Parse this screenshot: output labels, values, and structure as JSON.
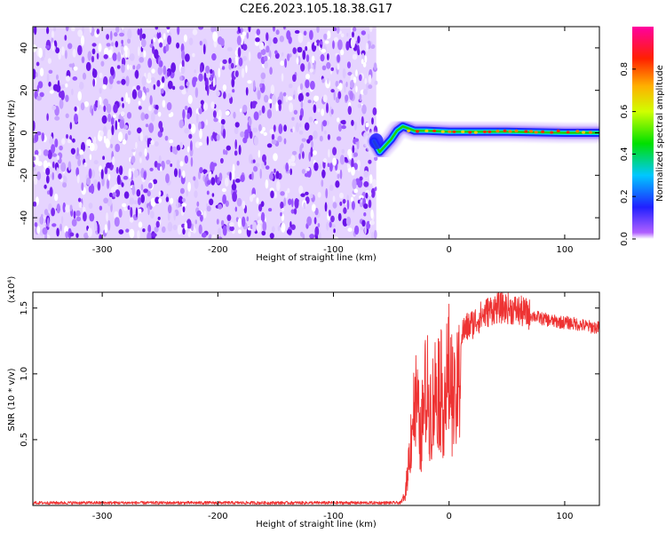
{
  "title": "C2E6.2023.105.18.38.G17",
  "chart_data": [
    {
      "type": "heatmap",
      "xlabel": "Height of straight line (km)",
      "ylabel": "Frequency (Hz)",
      "xlim": [
        -360,
        130
      ],
      "ylim": [
        -50,
        50
      ],
      "xticks": [
        -300,
        -200,
        -100,
        0,
        100
      ],
      "yticks": [
        -40,
        -20,
        0,
        20,
        40
      ],
      "noise_region": [
        -360,
        -63
      ],
      "signal_trace": [
        {
          "x": -65,
          "y": -4
        },
        {
          "x": -60,
          "y": -9
        },
        {
          "x": -55,
          "y": -6
        },
        {
          "x": -50,
          "y": -3
        },
        {
          "x": -45,
          "y": 1
        },
        {
          "x": -40,
          "y": 3
        },
        {
          "x": -35,
          "y": 2
        },
        {
          "x": -30,
          "y": 1
        },
        {
          "x": -20,
          "y": 1
        },
        {
          "x": 0,
          "y": 0.5
        },
        {
          "x": 50,
          "y": 0.5
        },
        {
          "x": 100,
          "y": 0
        },
        {
          "x": 130,
          "y": 0
        }
      ],
      "colorbar": {
        "label": "Normalized spectral amplitude",
        "ticks": [
          "0.0",
          "0.2",
          "0.4",
          "0.6",
          "0.8"
        ],
        "range": [
          0,
          1
        ]
      }
    },
    {
      "type": "line",
      "xlabel": "Height of straight line (km)",
      "ylabel": "SNR (10 * v/v)",
      "scale_label": "(x10⁴)",
      "xlim": [
        -360,
        130
      ],
      "ylim": [
        0,
        1.62
      ],
      "xticks": [
        -300,
        -200,
        -100,
        0,
        100
      ],
      "yticks": [
        "0.5",
        "1.0",
        "1.5"
      ],
      "color": "#ee3333",
      "series": [
        {
          "x": [
            -360,
            -300,
            -200,
            -100,
            -50,
            -42,
            -38,
            -35,
            -32,
            -28,
            -25,
            -20,
            -15,
            -10,
            -5,
            0,
            5,
            10,
            15,
            20,
            25,
            30,
            35,
            40,
            50,
            60,
            70,
            80,
            90,
            100,
            110,
            120,
            130
          ],
          "y": [
            0.02,
            0.02,
            0.02,
            0.02,
            0.02,
            0.02,
            0.1,
            0.4,
            0.8,
            1.0,
            0.6,
            1.1,
            0.9,
            1.2,
            1.0,
            1.25,
            0.9,
            1.3,
            1.35,
            1.38,
            1.42,
            1.45,
            1.48,
            1.5,
            1.5,
            1.48,
            1.45,
            1.42,
            1.4,
            1.39,
            1.38,
            1.36,
            1.35
          ]
        }
      ]
    }
  ]
}
